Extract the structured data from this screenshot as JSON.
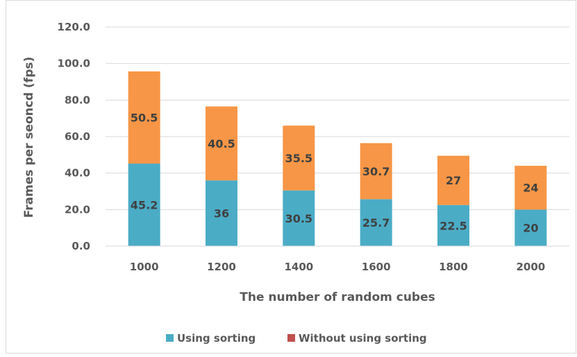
{
  "chart_data": {
    "type": "bar",
    "stacked": true,
    "categories": [
      "1000",
      "1200",
      "1400",
      "1600",
      "1800",
      "2000"
    ],
    "series": [
      {
        "name": "Using sorting",
        "values": [
          45.2,
          36,
          30.5,
          25.7,
          22.5,
          20
        ],
        "color": "#4bacc6",
        "legend_color": "#4bacc6"
      },
      {
        "name": "Without using sorting",
        "values": [
          50.5,
          40.5,
          35.5,
          30.7,
          27,
          24
        ],
        "color": "#f79646",
        "legend_color": "#c0504d"
      }
    ],
    "yticks": [
      "0.0",
      "20.0",
      "40.0",
      "60.0",
      "80.0",
      "100.0",
      "120.0"
    ],
    "ylim": [
      0,
      120
    ],
    "xlabel": "The number of random cubes",
    "ylabel": "Frames per seoncd (fps)",
    "grid": true,
    "legend_position": "bottom"
  }
}
